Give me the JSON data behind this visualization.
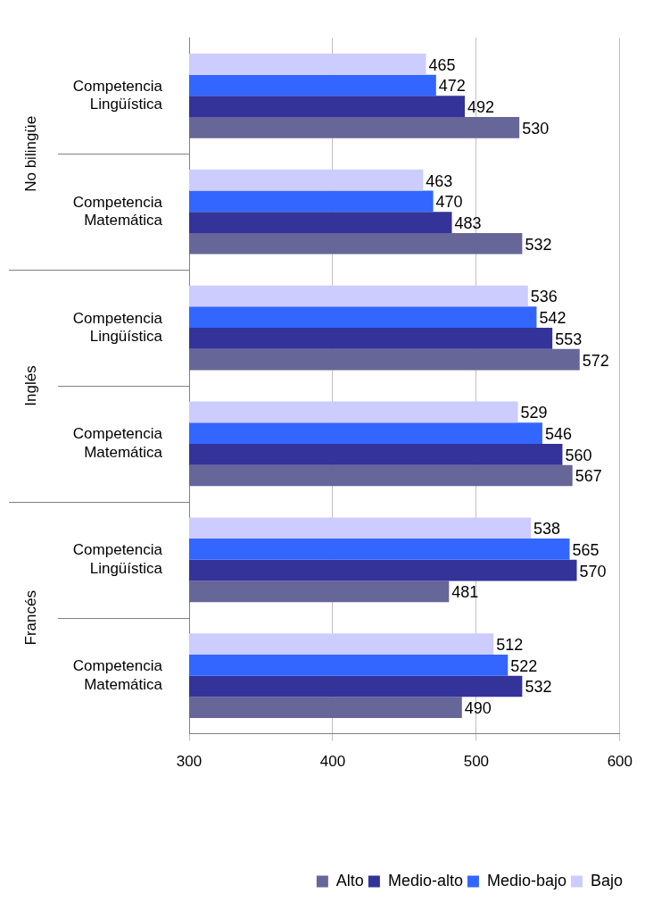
{
  "chart_data": {
    "type": "bar",
    "orientation": "horizontal",
    "categories": [
      "Competencia Lingüística",
      "Competencia Matemática",
      "Competencia Lingüística",
      "Competencia Matemática",
      "Competencia Lingüística",
      "Competencia Matemática"
    ],
    "annotations": [
      "No bilingüe",
      "Inglés",
      "Francés"
    ],
    "series": [
      {
        "name": "Bajo",
        "color": "#ccccff",
        "values": [
          465,
          463,
          536,
          529,
          538,
          512
        ]
      },
      {
        "name": "Medio-bajo",
        "color": "#3366ff",
        "values": [
          472,
          470,
          542,
          546,
          565,
          522
        ]
      },
      {
        "name": "Medio-alto",
        "color": "#333399",
        "values": [
          492,
          483,
          553,
          560,
          570,
          532
        ]
      },
      {
        "name": "Alto",
        "color": "#666699",
        "values": [
          530,
          532,
          572,
          567,
          481,
          490
        ]
      }
    ],
    "xlim": [
      300,
      600
    ],
    "xticks": [
      300,
      400,
      500,
      600
    ],
    "grid": "x",
    "legend": "bottom right",
    "data_labels": true
  }
}
